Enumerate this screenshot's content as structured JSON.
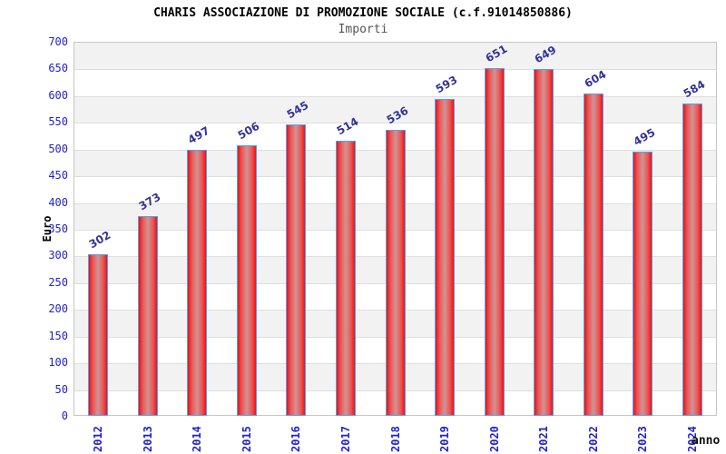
{
  "chart_data": {
    "type": "bar",
    "title": "CHARIS ASSOCIAZIONE DI PROMOZIONE SOCIALE (c.f.91014850886)",
    "subtitle": "Importi",
    "xlabel": "anno",
    "ylabel": "Euro",
    "categories": [
      "2012",
      "2013",
      "2014",
      "2015",
      "2016",
      "2017",
      "2018",
      "2019",
      "2020",
      "2021",
      "2022",
      "2023",
      "2024"
    ],
    "values": [
      302,
      373,
      497,
      506,
      545,
      514,
      536,
      593,
      651,
      649,
      604,
      495,
      584
    ],
    "ylim": [
      0,
      700
    ],
    "ytick_step": 50,
    "grid": "horizontal, alternating shaded bands every 50",
    "legend_position": "none",
    "colors": {
      "bar_edge": "#e81414",
      "bar_center": "#cf9494",
      "bar_border": "#55a0f0",
      "axis_tick_label": "#2222cc",
      "value_label": "#333399",
      "band_shade": "#f2f2f2",
      "gridline": "#dedede",
      "plot_border": "#c6c6c6",
      "title": "#000000",
      "subtitle": "#555555"
    }
  }
}
